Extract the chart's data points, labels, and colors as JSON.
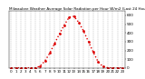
{
  "title": "Milwaukee Weather Average Solar Radiation per Hour W/m2 (Last 24 Hours)",
  "hours": [
    0,
    1,
    2,
    3,
    4,
    5,
    6,
    7,
    8,
    9,
    10,
    11,
    12,
    13,
    14,
    15,
    16,
    17,
    18,
    19,
    20,
    21,
    22,
    23
  ],
  "values": [
    0,
    0,
    0,
    0,
    0,
    2,
    20,
    80,
    170,
    280,
    390,
    490,
    580,
    590,
    520,
    420,
    300,
    180,
    70,
    15,
    2,
    0,
    0,
    0
  ],
  "line_color": "#dd0000",
  "line_style": "dotted",
  "line_width": 1.0,
  "marker": ".",
  "marker_size": 2,
  "background_color": "#ffffff",
  "grid_color": "#888888",
  "grid_style": "--",
  "ylabel_fontsize": 3.0,
  "xlabel_fontsize": 3.0,
  "title_fontsize": 3.0,
  "ylim": [
    0,
    650
  ],
  "yticks": [
    0,
    100,
    200,
    300,
    400,
    500,
    600
  ],
  "xlim": [
    -0.5,
    23.5
  ],
  "xticks": [
    0,
    1,
    2,
    3,
    4,
    5,
    6,
    7,
    8,
    9,
    10,
    11,
    12,
    13,
    14,
    15,
    16,
    17,
    18,
    19,
    20,
    21,
    22,
    23
  ]
}
